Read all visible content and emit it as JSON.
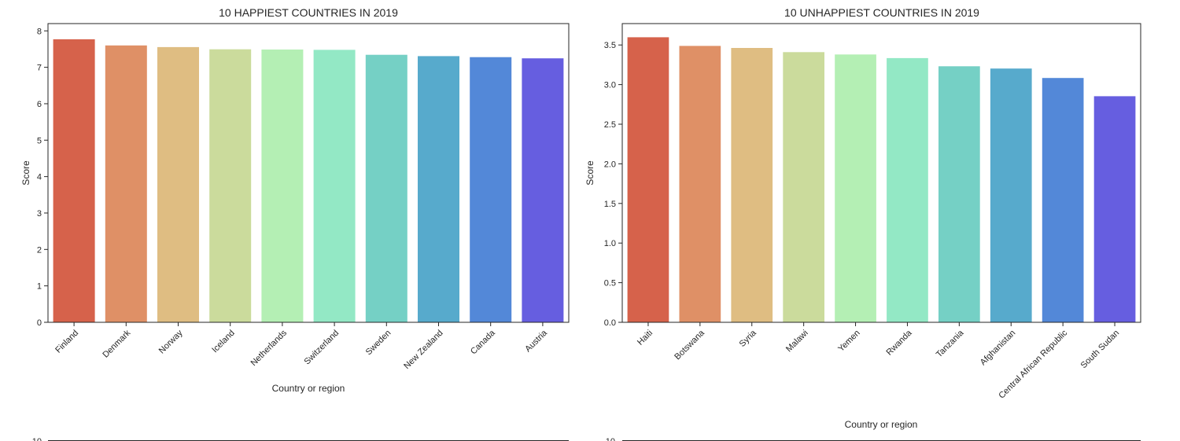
{
  "chart_data": [
    {
      "type": "bar",
      "title": "10 HAPPIEST COUNTRIES IN 2019",
      "xlabel": "Country or region",
      "ylabel": "Score",
      "categories": [
        "Finland",
        "Denmark",
        "Norway",
        "Iceland",
        "Netherlands",
        "Switzerland",
        "Sweden",
        "New Zealand",
        "Canada",
        "Austria"
      ],
      "values": [
        7.769,
        7.6,
        7.554,
        7.494,
        7.488,
        7.48,
        7.343,
        7.307,
        7.278,
        7.246
      ],
      "ylim": [
        0,
        8.2
      ],
      "yticks": [
        "0",
        "1",
        "2",
        "3",
        "4",
        "5",
        "6",
        "7",
        "8"
      ],
      "grid": false,
      "colors": [
        "#d6624b",
        "#df9066",
        "#dfbd82",
        "#cbdb9c",
        "#b4efb4",
        "#93e8c5",
        "#75d0c5",
        "#57aacc",
        "#5388d8",
        "#665ee0"
      ]
    },
    {
      "type": "bar",
      "title": "10 UNHAPPIEST COUNTRIES IN 2019",
      "xlabel": "Country or region",
      "ylabel": "Score",
      "categories": [
        "Haiti",
        "Botswana",
        "Syria",
        "Malawi",
        "Yemen",
        "Rwanda",
        "Tanzania",
        "Afghanistan",
        "Central African Republic",
        "South Sudan"
      ],
      "values": [
        3.597,
        3.488,
        3.462,
        3.41,
        3.38,
        3.334,
        3.231,
        3.203,
        3.083,
        2.853
      ],
      "ylim": [
        0,
        3.77
      ],
      "yticks": [
        "0.0",
        "0.5",
        "1.0",
        "1.5",
        "2.0",
        "2.5",
        "3.0",
        "3.5"
      ],
      "grid": false,
      "colors": [
        "#d6624b",
        "#df9066",
        "#dfbd82",
        "#cbdb9c",
        "#b4efb4",
        "#93e8c5",
        "#75d0c5",
        "#57aacc",
        "#5388d8",
        "#665ee0"
      ]
    }
  ],
  "lower_panels": {
    "left_top_tick": "10",
    "right_top_tick": "10"
  }
}
